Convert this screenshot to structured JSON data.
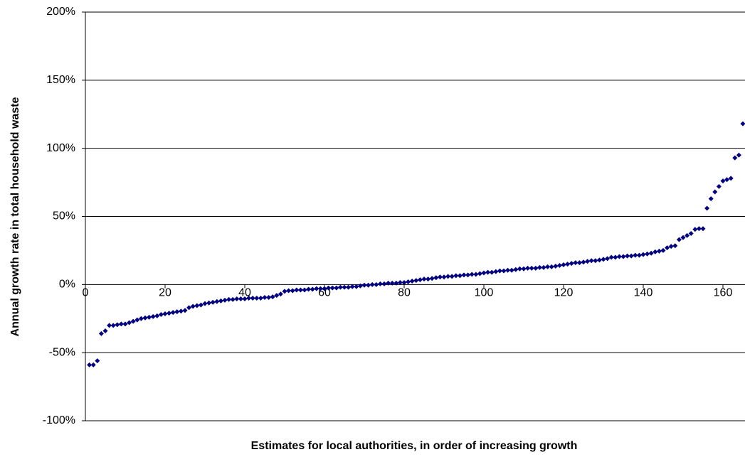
{
  "chart_data": {
    "type": "scatter",
    "x_label": "Estimates for local authorities, in order of increasing growth",
    "y_label": "Annual growth rate in total household waste",
    "color": "#000080",
    "grid": true,
    "xlim": [
      0,
      165
    ],
    "ylim": [
      -100,
      200
    ],
    "xticks": [
      0,
      20,
      40,
      60,
      80,
      100,
      120,
      140,
      160
    ],
    "yticks": [
      {
        "value": -100,
        "label": "-100%"
      },
      {
        "value": -50,
        "label": "-50%"
      },
      {
        "value": 0,
        "label": "0%"
      },
      {
        "value": 50,
        "label": "50%"
      },
      {
        "value": 100,
        "label": "100%"
      },
      {
        "value": 150,
        "label": "150%"
      },
      {
        "value": 200,
        "label": "200%"
      }
    ],
    "x": [
      1,
      2,
      3,
      4,
      5,
      6,
      7,
      8,
      9,
      10,
      11,
      12,
      13,
      14,
      15,
      16,
      17,
      18,
      19,
      20,
      21,
      22,
      23,
      24,
      25,
      26,
      27,
      28,
      29,
      30,
      31,
      32,
      33,
      34,
      35,
      36,
      37,
      38,
      39,
      40,
      41,
      42,
      43,
      44,
      45,
      46,
      47,
      48,
      49,
      50,
      51,
      52,
      53,
      54,
      55,
      56,
      57,
      58,
      59,
      60,
      61,
      62,
      63,
      64,
      65,
      66,
      67,
      68,
      69,
      70,
      71,
      72,
      73,
      74,
      75,
      76,
      77,
      78,
      79,
      80,
      81,
      82,
      83,
      84,
      85,
      86,
      87,
      88,
      89,
      90,
      91,
      92,
      93,
      94,
      95,
      96,
      97,
      98,
      99,
      100,
      101,
      102,
      103,
      104,
      105,
      106,
      107,
      108,
      109,
      110,
      111,
      112,
      113,
      114,
      115,
      116,
      117,
      118,
      119,
      120,
      121,
      122,
      123,
      124,
      125,
      126,
      127,
      128,
      129,
      130,
      131,
      132,
      133,
      134,
      135,
      136,
      137,
      138,
      139,
      140,
      141,
      142,
      143,
      144,
      145,
      146,
      147,
      148,
      149,
      150,
      151,
      152,
      153,
      154,
      155,
      156,
      157,
      158,
      159,
      160,
      161,
      162,
      163,
      164,
      165
    ],
    "values": [
      -59,
      -59,
      -56,
      -36,
      -34,
      -30,
      -30,
      -29.5,
      -29,
      -29,
      -28,
      -27,
      -26,
      -25,
      -24.5,
      -24,
      -23.5,
      -23,
      -22,
      -21.5,
      -21,
      -20.5,
      -20,
      -19.5,
      -19,
      -17,
      -16,
      -15.5,
      -15,
      -14,
      -13.5,
      -13,
      -12.5,
      -12,
      -11.5,
      -11,
      -11,
      -10.5,
      -10.5,
      -10.5,
      -10,
      -10,
      -10,
      -10,
      -9.5,
      -9.5,
      -9,
      -8,
      -7,
      -5,
      -4.5,
      -4.5,
      -4,
      -4,
      -4,
      -3.5,
      -3.5,
      -3,
      -3,
      -3,
      -2.5,
      -2.5,
      -2.5,
      -2,
      -2,
      -2,
      -1.5,
      -1.5,
      -1,
      -0.5,
      -0.5,
      0,
      0,
      0.5,
      0.5,
      1,
      1,
      1,
      1.5,
      1.5,
      2,
      2.5,
      3,
      3.5,
      4,
      4,
      4.5,
      5,
      5.5,
      5.5,
      6,
      6,
      6.5,
      6.5,
      7,
      7,
      7.5,
      7.5,
      8,
      8.5,
      9,
      9,
      9.5,
      10,
      10,
      10.5,
      10.5,
      11,
      11.5,
      11.5,
      12,
      12,
      12,
      12.5,
      12.5,
      13,
      13,
      13.5,
      14,
      14.5,
      15,
      15.5,
      16,
      16,
      16.5,
      17,
      17.5,
      17.5,
      18,
      18.5,
      19,
      20,
      20,
      20.5,
      20.5,
      21,
      21,
      21.5,
      21.5,
      22,
      22.5,
      23,
      24,
      24.5,
      25,
      27,
      28,
      28.5,
      33,
      34.5,
      36,
      37.5,
      40.5,
      41,
      41,
      56,
      63,
      68,
      72,
      76,
      77,
      78,
      93,
      95,
      118
    ]
  }
}
